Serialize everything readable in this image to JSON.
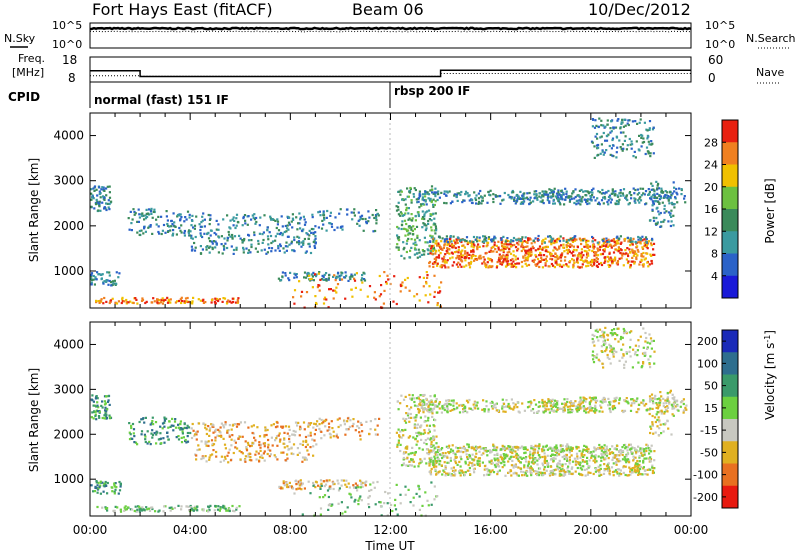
{
  "header": {
    "station": "Fort Hays East (fitACF)",
    "beam": "Beam 06",
    "date": "10/Dec/2012"
  },
  "strips": {
    "nsky": {
      "label": "N.Sky",
      "ticks_left": [
        "10^5",
        "10^0"
      ],
      "ticks_right": [
        "10^5",
        "10^0"
      ],
      "right_label": "N.Search",
      "nsky_level": 3.9,
      "nsearch_level": 3.3
    },
    "freq": {
      "label_top": "Freq.",
      "label_unit": "[MHz]",
      "ticks_left": [
        "18",
        "8"
      ],
      "ticks_right": [
        "60",
        "0"
      ],
      "right_label": "Nave",
      "freq_steps": [
        [
          0,
          12.5
        ],
        [
          2.0,
          10.2
        ],
        [
          12.0,
          10.2
        ],
        [
          14.0,
          12.7
        ],
        [
          24.0,
          12.7
        ]
      ],
      "nave_steps": [
        [
          0,
          10.5
        ],
        [
          2.0,
          10.3
        ],
        [
          12.0,
          10.3
        ],
        [
          14.0,
          11.4
        ],
        [
          24.0,
          11.4
        ]
      ]
    },
    "cpid": {
      "label": "CPID",
      "segments": [
        {
          "start_hour": 0,
          "label": "normal (fast) 151 IF"
        },
        {
          "start_hour": 12,
          "label": "rbsp 200 IF"
        }
      ]
    }
  },
  "chart_data": [
    {
      "type": "heatmap",
      "name": "power",
      "xlabel": "",
      "ylabel": "Slant Range [km]",
      "xlim": [
        0,
        24
      ],
      "ylim": [
        180,
        4500
      ],
      "yticks": [
        "1000",
        "2000",
        "3000",
        "4000"
      ],
      "colorbar": {
        "label": "Power [dB]",
        "range": [
          0,
          32
        ],
        "ticks": [
          "4",
          "8",
          "12",
          "16",
          "20",
          "24",
          "28"
        ]
      },
      "features": [
        {
          "t0": 0.0,
          "t1": 0.8,
          "r0": 2350,
          "r1": 2900,
          "dens": 0.8
        },
        {
          "t0": 0.0,
          "t1": 1.2,
          "r0": 700,
          "r1": 1000,
          "dens": 0.7
        },
        {
          "t0": 0.2,
          "t1": 6.0,
          "r0": 300,
          "r1": 430,
          "dens": 0.85
        },
        {
          "t0": 1.5,
          "t1": 4.0,
          "r0": 1800,
          "r1": 2400,
          "dens": 0.4
        },
        {
          "t0": 4.0,
          "t1": 9.0,
          "r0": 1400,
          "r1": 2300,
          "dens": 0.35
        },
        {
          "t0": 7.5,
          "t1": 11.0,
          "r0": 800,
          "r1": 1000,
          "dens": 0.6
        },
        {
          "t0": 9.0,
          "t1": 11.5,
          "r0": 1900,
          "r1": 2400,
          "dens": 0.3
        },
        {
          "t0": 12.2,
          "t1": 13.8,
          "r0": 1300,
          "r1": 2900,
          "dens": 0.45
        },
        {
          "t0": 13.0,
          "t1": 20.0,
          "r0": 2500,
          "r1": 2800,
          "dens": 0.6
        },
        {
          "t0": 18.0,
          "t1": 23.8,
          "r0": 2500,
          "r1": 2850,
          "dens": 0.6
        },
        {
          "t0": 13.5,
          "t1": 22.5,
          "r0": 1100,
          "r1": 1750,
          "dens": 0.8
        },
        {
          "t0": 13.5,
          "t1": 22.5,
          "r0": 1650,
          "r1": 1800,
          "dens": 0.5
        },
        {
          "t0": 20.0,
          "t1": 22.5,
          "r0": 3500,
          "r1": 4400,
          "dens": 0.35
        },
        {
          "t0": 22.3,
          "t1": 23.3,
          "r0": 2000,
          "r1": 3000,
          "dens": 0.35
        },
        {
          "t0": 8.0,
          "t1": 14.0,
          "r0": 200,
          "r1": 1000,
          "dens": 0.12
        }
      ]
    },
    {
      "type": "heatmap",
      "name": "velocity",
      "xlabel": "Time UT",
      "ylabel": "Slant Range [km]",
      "xlim": [
        0,
        24
      ],
      "ylim": [
        180,
        4500
      ],
      "xticks": [
        "00:00",
        "04:00",
        "08:00",
        "12:00",
        "16:00",
        "20:00",
        "00:00"
      ],
      "yticks": [
        "1000",
        "2000",
        "3000",
        "4000"
      ],
      "colorbar": {
        "label": "Velocity [m s",
        "label_exponent": "-1",
        "label_close": "]",
        "range": [
          -250,
          250
        ],
        "ticks": [
          "200",
          "100",
          "50",
          "15",
          "-15",
          "-50",
          "-100",
          "-200"
        ]
      },
      "features": [
        {
          "t0": 0.0,
          "t1": 0.8,
          "r0": 2350,
          "r1": 2900,
          "dens": 0.8
        },
        {
          "t0": 0.0,
          "t1": 1.2,
          "r0": 700,
          "r1": 1000,
          "dens": 0.7
        },
        {
          "t0": 0.2,
          "t1": 6.0,
          "r0": 300,
          "r1": 430,
          "dens": 0.85
        },
        {
          "t0": 1.5,
          "t1": 4.0,
          "r0": 1800,
          "r1": 2400,
          "dens": 0.4
        },
        {
          "t0": 4.0,
          "t1": 9.0,
          "r0": 1400,
          "r1": 2300,
          "dens": 0.35
        },
        {
          "t0": 7.5,
          "t1": 11.0,
          "r0": 800,
          "r1": 1000,
          "dens": 0.6
        },
        {
          "t0": 9.0,
          "t1": 11.5,
          "r0": 1900,
          "r1": 2400,
          "dens": 0.3
        },
        {
          "t0": 12.2,
          "t1": 13.8,
          "r0": 1300,
          "r1": 2900,
          "dens": 0.45
        },
        {
          "t0": 13.0,
          "t1": 20.0,
          "r0": 2500,
          "r1": 2800,
          "dens": 0.6
        },
        {
          "t0": 18.0,
          "t1": 23.8,
          "r0": 2500,
          "r1": 2850,
          "dens": 0.6
        },
        {
          "t0": 13.5,
          "t1": 22.5,
          "r0": 1100,
          "r1": 1750,
          "dens": 0.8
        },
        {
          "t0": 13.5,
          "t1": 22.5,
          "r0": 1650,
          "r1": 1800,
          "dens": 0.5
        },
        {
          "t0": 20.0,
          "t1": 22.5,
          "r0": 3500,
          "r1": 4400,
          "dens": 0.35
        },
        {
          "t0": 22.3,
          "t1": 23.3,
          "r0": 2000,
          "r1": 3000,
          "dens": 0.35
        },
        {
          "t0": 8.0,
          "t1": 14.0,
          "r0": 200,
          "r1": 1000,
          "dens": 0.12
        }
      ]
    }
  ],
  "colors": {
    "power_scale": [
      "#1a1ad8",
      "#2a62c8",
      "#3a9aa0",
      "#3a8a5a",
      "#6cc040",
      "#f0c000",
      "#f08020",
      "#e82010"
    ],
    "velocity_scale": [
      "#1a2ab8",
      "#2e6e8e",
      "#3a9a6a",
      "#6cd040",
      "#c8c8c0",
      "#e0b020",
      "#e87020",
      "#e81a10"
    ]
  }
}
